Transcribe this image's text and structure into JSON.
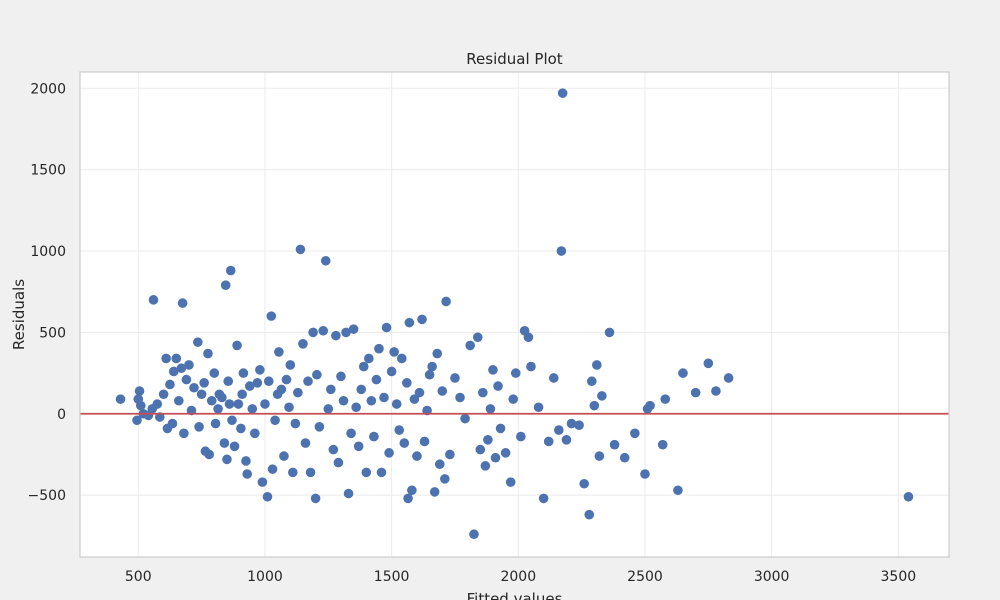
{
  "chart_data": {
    "type": "scatter",
    "title": "Residual Plot",
    "xlabel": "Fitted values",
    "ylabel": "Residuals",
    "xlim": [
      270,
      3700
    ],
    "ylim": [
      -880,
      2100
    ],
    "x_ticks": [
      500,
      1000,
      1500,
      2000,
      2500,
      3000,
      3500
    ],
    "y_ticks": [
      -500,
      0,
      500,
      1000,
      1500,
      2000
    ],
    "x_tick_labels": [
      "500",
      "1000",
      "1500",
      "2000",
      "2500",
      "3000",
      "3500"
    ],
    "y_tick_labels": [
      "−500",
      "0",
      "500",
      "1000",
      "1500",
      "2000"
    ],
    "grid": true,
    "reference_line": {
      "y": 0,
      "color": "#c44e52"
    },
    "marker_color": "#4c72b0",
    "points": [
      [
        430,
        90
      ],
      [
        495,
        -40
      ],
      [
        500,
        90
      ],
      [
        505,
        140
      ],
      [
        510,
        50
      ],
      [
        520,
        0
      ],
      [
        540,
        -10
      ],
      [
        555,
        30
      ],
      [
        560,
        700
      ],
      [
        575,
        60
      ],
      [
        585,
        -20
      ],
      [
        600,
        120
      ],
      [
        610,
        340
      ],
      [
        615,
        -90
      ],
      [
        625,
        180
      ],
      [
        635,
        -60
      ],
      [
        640,
        260
      ],
      [
        650,
        340
      ],
      [
        660,
        80
      ],
      [
        670,
        280
      ],
      [
        675,
        680
      ],
      [
        680,
        -120
      ],
      [
        690,
        210
      ],
      [
        700,
        300
      ],
      [
        710,
        20
      ],
      [
        720,
        160
      ],
      [
        735,
        440
      ],
      [
        740,
        -80
      ],
      [
        750,
        120
      ],
      [
        760,
        190
      ],
      [
        765,
        -230
      ],
      [
        775,
        370
      ],
      [
        780,
        -250
      ],
      [
        790,
        80
      ],
      [
        800,
        250
      ],
      [
        805,
        -60
      ],
      [
        815,
        30
      ],
      [
        820,
        120
      ],
      [
        830,
        100
      ],
      [
        840,
        -180
      ],
      [
        845,
        790
      ],
      [
        850,
        -280
      ],
      [
        855,
        200
      ],
      [
        860,
        60
      ],
      [
        865,
        880
      ],
      [
        870,
        -40
      ],
      [
        880,
        -200
      ],
      [
        890,
        420
      ],
      [
        895,
        60
      ],
      [
        905,
        -90
      ],
      [
        910,
        120
      ],
      [
        915,
        250
      ],
      [
        925,
        -290
      ],
      [
        930,
        -370
      ],
      [
        940,
        170
      ],
      [
        950,
        30
      ],
      [
        960,
        -120
      ],
      [
        970,
        190
      ],
      [
        980,
        270
      ],
      [
        990,
        -420
      ],
      [
        1000,
        60
      ],
      [
        1010,
        -510
      ],
      [
        1015,
        200
      ],
      [
        1025,
        600
      ],
      [
        1030,
        -340
      ],
      [
        1040,
        -40
      ],
      [
        1050,
        120
      ],
      [
        1055,
        380
      ],
      [
        1065,
        150
      ],
      [
        1075,
        -260
      ],
      [
        1085,
        210
      ],
      [
        1095,
        40
      ],
      [
        1100,
        300
      ],
      [
        1110,
        -360
      ],
      [
        1120,
        -60
      ],
      [
        1130,
        130
      ],
      [
        1140,
        1010
      ],
      [
        1150,
        430
      ],
      [
        1160,
        -180
      ],
      [
        1170,
        200
      ],
      [
        1180,
        -360
      ],
      [
        1190,
        500
      ],
      [
        1200,
        -520
      ],
      [
        1205,
        240
      ],
      [
        1215,
        -80
      ],
      [
        1230,
        510
      ],
      [
        1240,
        940
      ],
      [
        1250,
        30
      ],
      [
        1260,
        150
      ],
      [
        1270,
        -220
      ],
      [
        1280,
        480
      ],
      [
        1290,
        -300
      ],
      [
        1300,
        230
      ],
      [
        1310,
        80
      ],
      [
        1320,
        500
      ],
      [
        1330,
        -490
      ],
      [
        1340,
        -120
      ],
      [
        1350,
        520
      ],
      [
        1360,
        40
      ],
      [
        1370,
        -200
      ],
      [
        1380,
        150
      ],
      [
        1390,
        290
      ],
      [
        1400,
        -360
      ],
      [
        1410,
        340
      ],
      [
        1420,
        80
      ],
      [
        1430,
        -140
      ],
      [
        1440,
        210
      ],
      [
        1450,
        400
      ],
      [
        1460,
        -360
      ],
      [
        1470,
        100
      ],
      [
        1480,
        530
      ],
      [
        1490,
        -240
      ],
      [
        1500,
        260
      ],
      [
        1510,
        380
      ],
      [
        1520,
        60
      ],
      [
        1530,
        -100
      ],
      [
        1540,
        340
      ],
      [
        1550,
        -180
      ],
      [
        1560,
        190
      ],
      [
        1565,
        -520
      ],
      [
        1570,
        560
      ],
      [
        1580,
        -470
      ],
      [
        1590,
        90
      ],
      [
        1600,
        -260
      ],
      [
        1610,
        130
      ],
      [
        1620,
        580
      ],
      [
        1630,
        -170
      ],
      [
        1640,
        20
      ],
      [
        1650,
        240
      ],
      [
        1660,
        290
      ],
      [
        1670,
        -480
      ],
      [
        1680,
        370
      ],
      [
        1690,
        -310
      ],
      [
        1700,
        140
      ],
      [
        1710,
        -400
      ],
      [
        1715,
        690
      ],
      [
        1730,
        -250
      ],
      [
        1750,
        220
      ],
      [
        1770,
        100
      ],
      [
        1790,
        -30
      ],
      [
        1810,
        420
      ],
      [
        1825,
        -740
      ],
      [
        1840,
        470
      ],
      [
        1850,
        -220
      ],
      [
        1860,
        130
      ],
      [
        1870,
        -320
      ],
      [
        1880,
        -160
      ],
      [
        1890,
        30
      ],
      [
        1900,
        270
      ],
      [
        1910,
        -270
      ],
      [
        1920,
        170
      ],
      [
        1930,
        -90
      ],
      [
        1950,
        -240
      ],
      [
        1970,
        -420
      ],
      [
        1980,
        90
      ],
      [
        1990,
        250
      ],
      [
        2010,
        -140
      ],
      [
        2025,
        510
      ],
      [
        2040,
        470
      ],
      [
        2050,
        290
      ],
      [
        2080,
        40
      ],
      [
        2100,
        -520
      ],
      [
        2120,
        -170
      ],
      [
        2140,
        220
      ],
      [
        2160,
        -100
      ],
      [
        2170,
        1000
      ],
      [
        2175,
        1970
      ],
      [
        2190,
        -160
      ],
      [
        2210,
        -60
      ],
      [
        2240,
        -70
      ],
      [
        2260,
        -430
      ],
      [
        2280,
        -620
      ],
      [
        2290,
        200
      ],
      [
        2300,
        50
      ],
      [
        2310,
        300
      ],
      [
        2320,
        -260
      ],
      [
        2330,
        110
      ],
      [
        2360,
        500
      ],
      [
        2380,
        -190
      ],
      [
        2420,
        -270
      ],
      [
        2460,
        -120
      ],
      [
        2500,
        -370
      ],
      [
        2510,
        30
      ],
      [
        2520,
        50
      ],
      [
        2570,
        -190
      ],
      [
        2580,
        90
      ],
      [
        2630,
        -470
      ],
      [
        2650,
        250
      ],
      [
        2700,
        130
      ],
      [
        2750,
        310
      ],
      [
        2780,
        140
      ],
      [
        2830,
        220
      ],
      [
        3540,
        -510
      ]
    ]
  }
}
